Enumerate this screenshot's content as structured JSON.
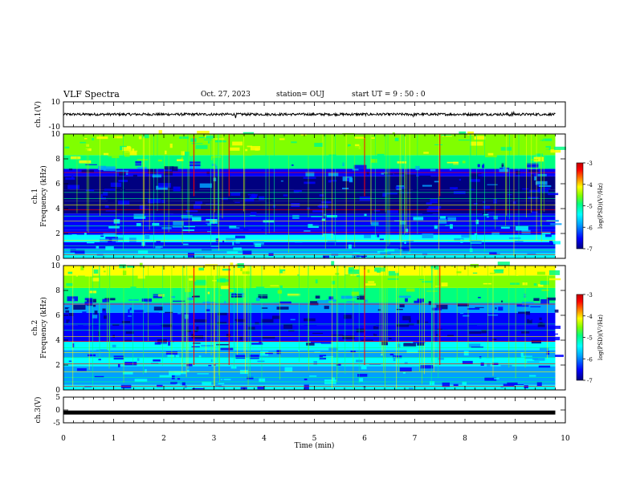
{
  "header": {
    "title": "VLF Spectra",
    "date": "Oct. 27, 2023",
    "station": "station= OUJ",
    "start": "start  UT =   9 : 50 : 0"
  },
  "colors": {
    "background": "#ffffff",
    "axis": "#000000",
    "colormap": [
      "#000080",
      "#0000ff",
      "#00a0ff",
      "#00ffff",
      "#00ff80",
      "#80ff00",
      "#ffff00",
      "#ff8000",
      "#ff0000",
      "#c00000"
    ]
  },
  "chart_data": [
    {
      "type": "line",
      "panel": "ch1-waveform",
      "ylabel": "ch.1(V)",
      "ylim": [
        -10,
        10
      ],
      "ytick_labels": [
        "10",
        "-10"
      ],
      "x_range_min": [
        0,
        10
      ],
      "series_description_values": {
        "baseline": 0,
        "typical_amplitude": 1
      }
    },
    {
      "type": "heatmap",
      "panel": "ch1-spectrogram",
      "ylabel_line1": "ch.1",
      "ylabel_line2": "Frequency  (kHz)",
      "ylim_khz": [
        0,
        10
      ],
      "ytick_labels": [
        "0",
        "2",
        "4",
        "6",
        "8",
        "10"
      ],
      "x_range_min": [
        0,
        10
      ],
      "colorbar": {
        "label": "log(PSD)(V²/Hz)",
        "tick_labels": [
          "-3",
          "-4",
          "-5",
          "-6",
          "-7"
        ],
        "range": [
          -7,
          -3
        ]
      }
    },
    {
      "type": "heatmap",
      "panel": "ch2-spectrogram",
      "ylabel_line1": "ch.2",
      "ylabel_line2": "Frequency  (kHz)",
      "ylim_khz": [
        0,
        10
      ],
      "ytick_labels": [
        "0",
        "2",
        "4",
        "6",
        "8",
        "10"
      ],
      "x_range_min": [
        0,
        10
      ],
      "colorbar": {
        "label": "log(PSD)(V²/Hz)",
        "tick_labels": [
          "-3",
          "-4",
          "-5",
          "-6",
          "-7"
        ],
        "range": [
          -7,
          -3
        ]
      }
    },
    {
      "type": "line",
      "panel": "ch3-waveform",
      "ylabel": "ch.3(V)",
      "ylim": [
        -5,
        5
      ],
      "ytick_labels": [
        "5",
        "0",
        "-5"
      ],
      "x_range_min": [
        0,
        10
      ],
      "series_description_values": {
        "baseline": -1,
        "typical_amplitude": 0.1
      }
    }
  ],
  "xaxis": {
    "label": "Time  (min)",
    "tick_labels": [
      "0",
      "1",
      "2",
      "3",
      "4",
      "5",
      "6",
      "7",
      "8",
      "9",
      "10"
    ],
    "data_end_min": 9.8
  }
}
